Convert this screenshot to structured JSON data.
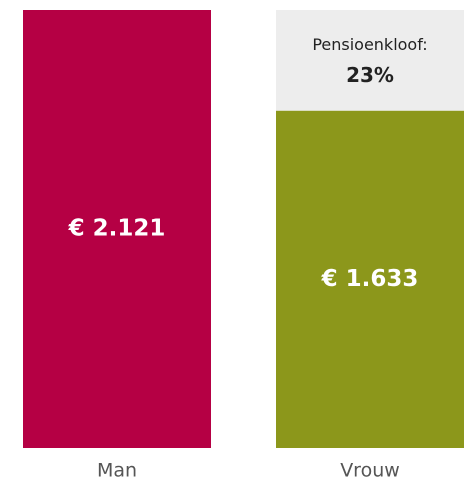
{
  "chart_data": {
    "type": "bar",
    "categories": [
      "Man",
      "Vrouw"
    ],
    "values": [
      2121,
      1633
    ],
    "value_labels": [
      "€ 2.121",
      "€ 1.633"
    ],
    "colors": [
      "#b50044",
      "#8c971b"
    ],
    "gap_color": "#ededed",
    "annotation": "Pensioenkloof:",
    "annotation_value": "23%"
  }
}
